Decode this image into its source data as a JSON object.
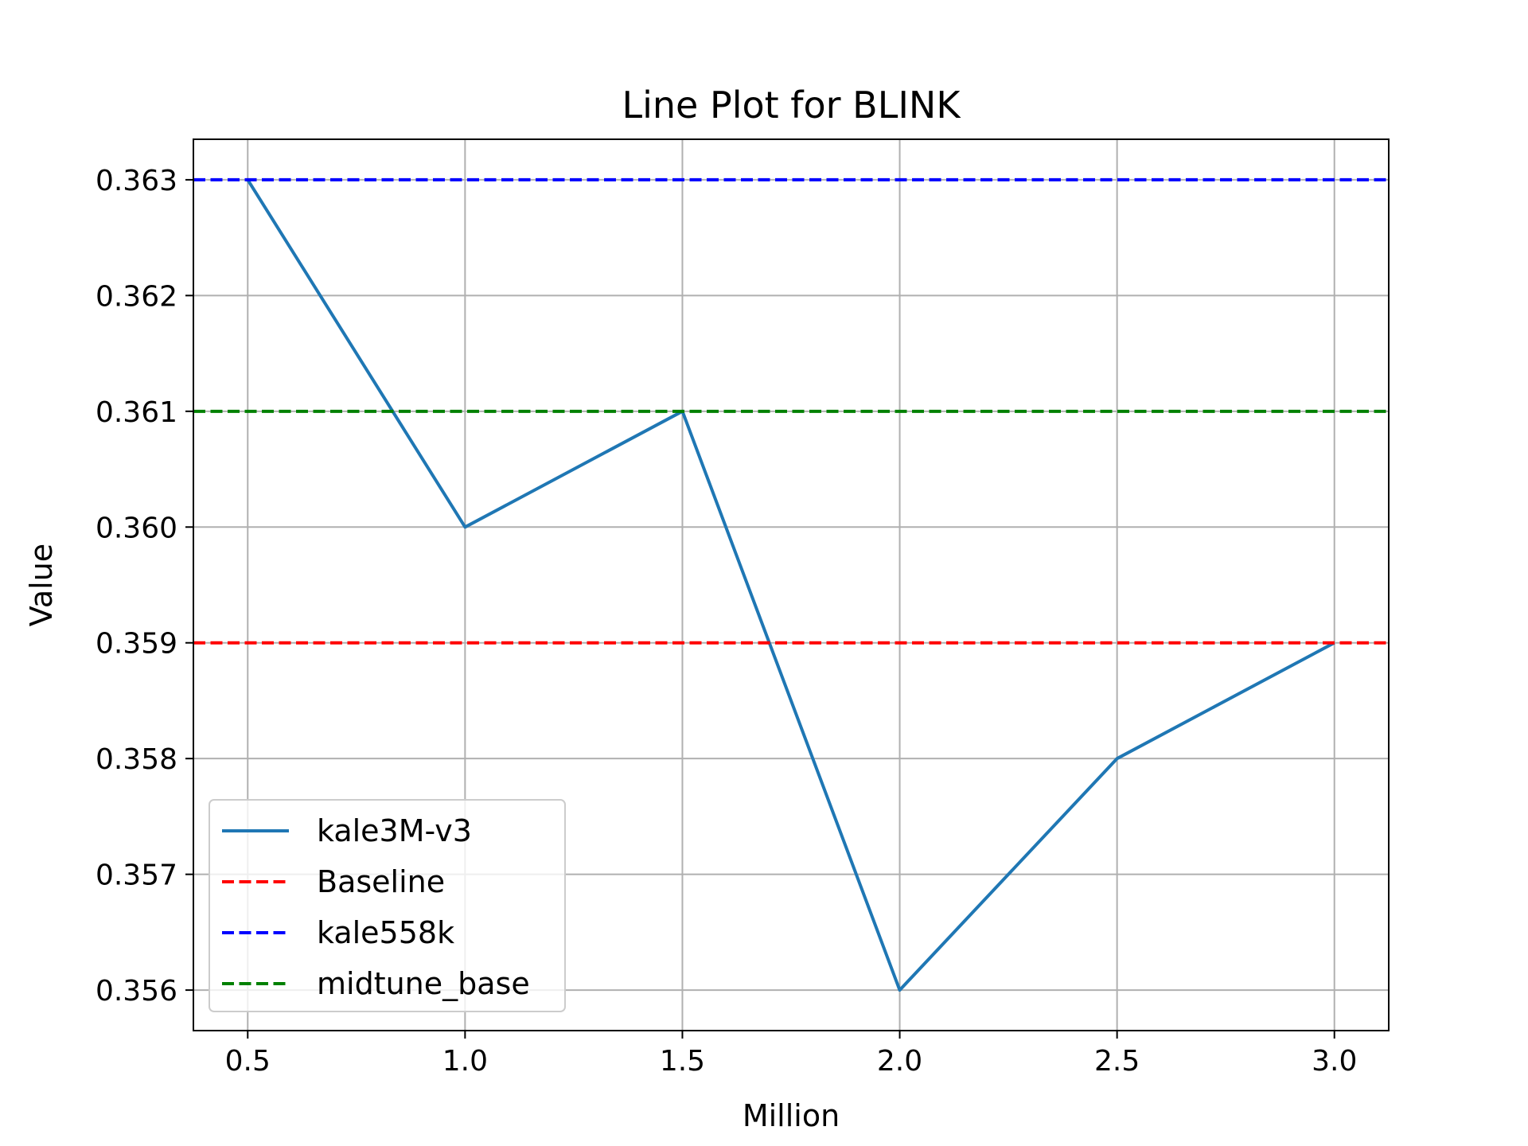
{
  "chart_data": {
    "type": "line",
    "title": "Line Plot for BLINK",
    "xlabel": "Million",
    "ylabel": "Value",
    "xlim": [
      0.375,
      3.125
    ],
    "ylim": [
      0.35565,
      0.36335
    ],
    "xticks": [
      0.5,
      1.0,
      1.5,
      2.0,
      2.5,
      3.0
    ],
    "xtick_labels": [
      "0.5",
      "1.0",
      "1.5",
      "2.0",
      "2.5",
      "3.0"
    ],
    "yticks": [
      0.356,
      0.357,
      0.358,
      0.359,
      0.36,
      0.361,
      0.362,
      0.363
    ],
    "ytick_labels": [
      "0.356",
      "0.357",
      "0.358",
      "0.359",
      "0.360",
      "0.361",
      "0.362",
      "0.363"
    ],
    "grid": true,
    "legend_position": "lower-left",
    "series": [
      {
        "name": "kale3M-v3",
        "style": "solid",
        "color": "#1f77b4",
        "x": [
          0.5,
          1.0,
          1.5,
          2.0,
          2.5,
          3.0
        ],
        "y": [
          0.363,
          0.36,
          0.361,
          0.356,
          0.358,
          0.359
        ]
      },
      {
        "name": "Baseline",
        "style": "dashed",
        "color": "#ff0000",
        "hline": 0.359
      },
      {
        "name": "kale558k",
        "style": "dashed",
        "color": "#0000ff",
        "hline": 0.363
      },
      {
        "name": "midtune_base",
        "style": "dashed",
        "color": "#008000",
        "hline": 0.361
      }
    ]
  }
}
